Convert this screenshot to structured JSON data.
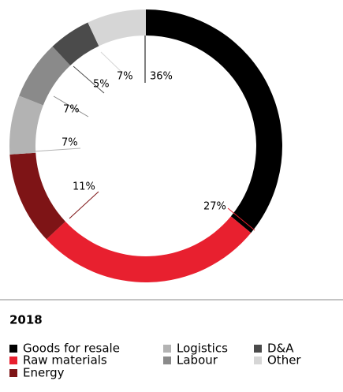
{
  "chart_data": {
    "type": "pie",
    "title": "2018",
    "categories": [
      "Goods for resale",
      "Raw materials",
      "Energy",
      "Logistics",
      "Labour",
      "D&A",
      "Other"
    ],
    "values": [
      36,
      27,
      11,
      7,
      7,
      5,
      7
    ],
    "value_labels": [
      "36%",
      "27%",
      "11%",
      "7%",
      "7%",
      "5%",
      "7%"
    ],
    "colors": [
      "#000000",
      "#e8202f",
      "#7e1416",
      "#b3b3b3",
      "#8a8a8a",
      "#4b4b4b",
      "#d6d6d6"
    ]
  }
}
